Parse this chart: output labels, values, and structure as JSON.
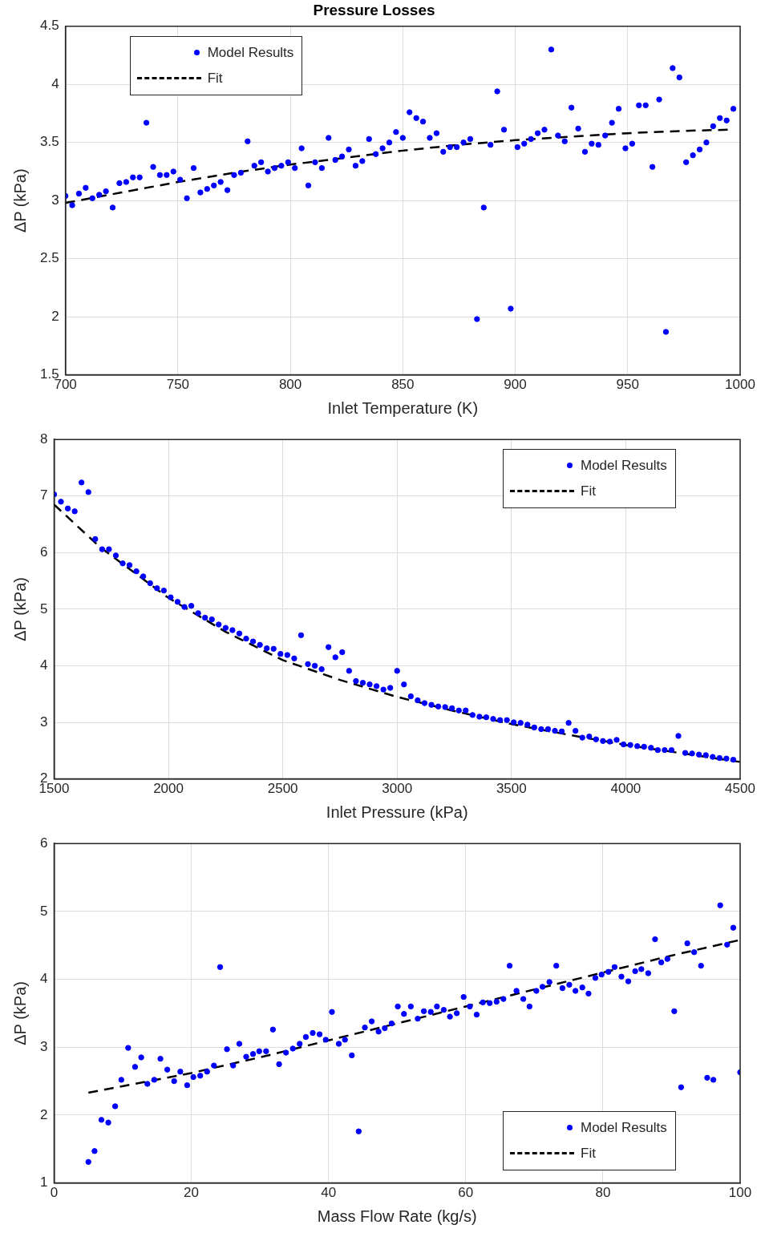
{
  "chart_data": [
    {
      "type": "scatter",
      "title": "Pressure Losses",
      "xlabel": "Inlet Temperature (K)",
      "ylabel": "ΔP (kPa)",
      "xlim": [
        700,
        1000
      ],
      "xticks": [
        700,
        750,
        800,
        850,
        900,
        950,
        1000
      ],
      "ylim": [
        1.5,
        4.5
      ],
      "yticks": [
        1.5,
        2,
        2.5,
        3,
        3.5,
        4,
        4.5
      ],
      "grid": true,
      "legend": "top left",
      "series": [
        {
          "name": "Model Results",
          "type": "scatter",
          "color": "#0000ff",
          "marker": "circle",
          "x": [
            700,
            703,
            706,
            709,
            712,
            715,
            718,
            721,
            724,
            727,
            730,
            733,
            736,
            739,
            742,
            745,
            748,
            751,
            754,
            757,
            760,
            763,
            766,
            769,
            772,
            775,
            778,
            781,
            784,
            787,
            790,
            793,
            796,
            799,
            802,
            805,
            808,
            811,
            814,
            817,
            820,
            823,
            826,
            829,
            832,
            835,
            838,
            841,
            844,
            847,
            850,
            853,
            856,
            859,
            862,
            865,
            868,
            871,
            874,
            877,
            880,
            883,
            886,
            889,
            892,
            895,
            898,
            901,
            904,
            907,
            910,
            913,
            916,
            919,
            922,
            925,
            928,
            931,
            934,
            937,
            940,
            943,
            946,
            949,
            952,
            955,
            958,
            961,
            964,
            967,
            970,
            973,
            976,
            979,
            982,
            985,
            988,
            991,
            994,
            997
          ],
          "values": [
            3.04,
            2.96,
            3.06,
            3.11,
            3.02,
            3.05,
            3.08,
            2.94,
            3.15,
            3.16,
            3.2,
            3.2,
            3.67,
            3.29,
            3.22,
            3.22,
            3.25,
            3.18,
            3.02,
            3.28,
            3.07,
            3.1,
            3.13,
            3.16,
            3.09,
            3.22,
            3.24,
            3.51,
            3.3,
            3.33,
            3.25,
            3.28,
            3.3,
            3.33,
            3.28,
            3.45,
            3.13,
            3.33,
            3.28,
            3.54,
            3.35,
            3.38,
            3.44,
            3.3,
            3.34,
            3.53,
            3.4,
            3.45,
            3.5,
            3.59,
            3.54,
            3.76,
            3.71,
            3.68,
            3.54,
            3.58,
            3.42,
            3.46,
            3.46,
            3.5,
            3.53,
            1.98,
            2.94,
            3.48,
            3.94,
            3.61,
            2.07,
            3.46,
            3.49,
            3.53,
            3.58,
            3.61,
            4.3,
            3.56,
            3.51,
            3.8,
            3.62,
            3.42,
            3.49,
            3.48,
            3.56,
            3.67,
            3.79,
            3.45,
            3.49,
            3.82,
            3.82,
            3.29,
            3.87,
            1.87,
            4.14,
            4.06,
            3.33,
            3.39,
            3.44,
            3.5,
            3.64,
            3.71,
            3.69,
            3.79
          ]
        },
        {
          "name": "Fit",
          "type": "line",
          "color": "#000000",
          "line_style": "dashed",
          "marker": "none",
          "x": [
            700,
            725,
            750,
            775,
            800,
            825,
            850,
            875,
            900,
            925,
            950,
            975,
            995
          ],
          "values": [
            2.98,
            3.07,
            3.16,
            3.24,
            3.31,
            3.37,
            3.43,
            3.48,
            3.52,
            3.55,
            3.58,
            3.6,
            3.61
          ]
        }
      ]
    },
    {
      "type": "scatter",
      "xlabel": "Inlet Pressure (kPa)",
      "ylabel": "ΔP (kPa)",
      "xlim": [
        1500,
        4500
      ],
      "xticks": [
        1500,
        2000,
        2500,
        3000,
        3500,
        4000,
        4500
      ],
      "ylim": [
        2,
        8
      ],
      "yticks": [
        2,
        3,
        4,
        5,
        6,
        7,
        8
      ],
      "grid": true,
      "legend": "top right",
      "series": [
        {
          "name": "Model Results",
          "type": "scatter",
          "color": "#0000ff",
          "marker": "circle",
          "x": [
            1500,
            1530,
            1560,
            1590,
            1620,
            1650,
            1680,
            1710,
            1740,
            1770,
            1800,
            1830,
            1860,
            1890,
            1920,
            1950,
            1980,
            2010,
            2040,
            2070,
            2100,
            2130,
            2160,
            2190,
            2220,
            2250,
            2280,
            2310,
            2340,
            2370,
            2400,
            2430,
            2460,
            2490,
            2520,
            2550,
            2580,
            2610,
            2640,
            2670,
            2700,
            2730,
            2760,
            2790,
            2820,
            2850,
            2880,
            2910,
            2940,
            2970,
            3000,
            3030,
            3060,
            3090,
            3120,
            3150,
            3180,
            3210,
            3240,
            3270,
            3300,
            3330,
            3360,
            3390,
            3420,
            3450,
            3480,
            3510,
            3540,
            3570,
            3600,
            3630,
            3660,
            3690,
            3720,
            3750,
            3780,
            3810,
            3840,
            3870,
            3900,
            3930,
            3960,
            3990,
            4020,
            4050,
            4080,
            4110,
            4140,
            4170,
            4200,
            4230,
            4260,
            4290,
            4320,
            4350,
            4380,
            4410,
            4440,
            4470
          ],
          "values": [
            7.03,
            6.9,
            6.78,
            6.73,
            7.24,
            7.07,
            6.24,
            6.06,
            6.06,
            5.95,
            5.81,
            5.78,
            5.67,
            5.58,
            5.46,
            5.37,
            5.33,
            5.21,
            5.13,
            5.04,
            5.06,
            4.93,
            4.85,
            4.82,
            4.73,
            4.67,
            4.63,
            4.57,
            4.48,
            4.43,
            4.37,
            4.31,
            4.3,
            4.21,
            4.19,
            4.13,
            4.54,
            4.03,
            4.0,
            3.94,
            4.33,
            4.15,
            4.24,
            3.91,
            3.73,
            3.7,
            3.67,
            3.64,
            3.58,
            3.61,
            3.91,
            3.67,
            3.46,
            3.39,
            3.34,
            3.31,
            3.28,
            3.27,
            3.25,
            3.21,
            3.21,
            3.13,
            3.1,
            3.09,
            3.06,
            3.04,
            3.04,
            3.0,
            2.99,
            2.96,
            2.91,
            2.88,
            2.88,
            2.85,
            2.84,
            2.99,
            2.85,
            2.73,
            2.75,
            2.7,
            2.67,
            2.66,
            2.69,
            2.61,
            2.6,
            2.58,
            2.57,
            2.55,
            2.51,
            2.51,
            2.51,
            2.76,
            2.46,
            2.45,
            2.43,
            2.42,
            2.39,
            2.37,
            2.36,
            2.34
          ]
        },
        {
          "name": "Fit",
          "type": "line",
          "color": "#000000",
          "line_style": "dashed",
          "marker": "none",
          "x": [
            1500,
            1700,
            2000,
            2250,
            2500,
            2750,
            3000,
            3250,
            3500,
            3750,
            4000,
            4250,
            4500
          ],
          "values": [
            6.85,
            6.1,
            5.2,
            4.6,
            4.1,
            3.75,
            3.45,
            3.2,
            2.97,
            2.78,
            2.6,
            2.45,
            2.3
          ]
        }
      ]
    },
    {
      "type": "scatter",
      "xlabel": "Mass Flow Rate (kg/s)",
      "ylabel": "ΔP (kPa)",
      "xlim": [
        0,
        100
      ],
      "xticks": [
        0,
        20,
        40,
        60,
        80,
        100
      ],
      "ylim": [
        1,
        6
      ],
      "yticks": [
        1,
        2,
        3,
        4,
        5,
        6
      ],
      "grid": true,
      "legend": "bottom right",
      "series": [
        {
          "name": "Model Results",
          "type": "scatter",
          "color": "#0000ff",
          "marker": "circle",
          "x": [
            5.0,
            5.9,
            6.9,
            7.9,
            8.9,
            9.8,
            10.8,
            11.8,
            12.7,
            13.6,
            14.6,
            15.5,
            16.5,
            17.5,
            18.4,
            19.4,
            20.3,
            21.3,
            22.3,
            23.3,
            24.2,
            25.2,
            26.1,
            27.0,
            28.0,
            29.0,
            29.9,
            30.9,
            31.9,
            32.8,
            33.8,
            34.8,
            35.8,
            36.7,
            37.7,
            38.7,
            39.6,
            40.5,
            41.5,
            42.4,
            43.4,
            44.4,
            45.3,
            46.3,
            47.3,
            48.2,
            49.2,
            50.1,
            51.0,
            52.0,
            53.0,
            53.9,
            54.9,
            55.8,
            56.8,
            57.7,
            58.7,
            59.7,
            60.6,
            61.6,
            62.5,
            63.5,
            64.5,
            65.5,
            66.4,
            67.4,
            68.4,
            69.3,
            70.3,
            71.2,
            72.2,
            73.2,
            74.1,
            75.1,
            76.0,
            77.0,
            77.9,
            78.9,
            79.8,
            80.8,
            81.7,
            82.7,
            83.7,
            84.7,
            85.6,
            86.6,
            87.6,
            88.5,
            89.4,
            90.4,
            91.4,
            92.3,
            93.3,
            94.3,
            95.2,
            96.1,
            97.1,
            98.1,
            99.0,
            100
          ],
          "values": [
            1.31,
            1.47,
            1.93,
            1.89,
            2.13,
            2.52,
            2.99,
            2.71,
            2.85,
            2.46,
            2.52,
            2.83,
            2.67,
            2.5,
            2.64,
            2.44,
            2.56,
            2.58,
            2.64,
            2.73,
            4.18,
            2.97,
            2.73,
            3.05,
            2.86,
            2.9,
            2.94,
            2.94,
            3.26,
            2.75,
            2.92,
            2.98,
            3.05,
            3.15,
            3.21,
            3.19,
            3.11,
            3.52,
            3.05,
            3.11,
            2.88,
            1.76,
            3.29,
            3.38,
            3.23,
            3.28,
            3.35,
            3.6,
            3.49,
            3.6,
            3.42,
            3.53,
            3.52,
            3.6,
            3.55,
            3.45,
            3.5,
            3.74,
            3.6,
            3.48,
            3.66,
            3.65,
            3.67,
            3.71,
            4.2,
            3.83,
            3.71,
            3.6,
            3.83,
            3.89,
            3.96,
            4.2,
            3.87,
            3.92,
            3.83,
            3.88,
            3.79,
            4.02,
            4.07,
            4.11,
            4.18,
            4.04,
            3.97,
            4.12,
            4.15,
            4.09,
            4.59,
            4.25,
            4.3,
            3.53,
            2.41,
            4.53,
            4.4,
            4.2,
            2.55,
            2.52,
            5.09,
            4.51,
            4.76,
            2.63
          ]
        },
        {
          "name": "Fit",
          "type": "line",
          "color": "#000000",
          "line_style": "dashed",
          "marker": "none",
          "x": [
            5,
            20,
            30,
            40,
            50,
            60,
            70,
            80,
            90,
            100
          ],
          "values": [
            2.33,
            2.62,
            2.85,
            3.1,
            3.35,
            3.6,
            3.85,
            4.1,
            4.35,
            4.58
          ]
        }
      ]
    }
  ]
}
